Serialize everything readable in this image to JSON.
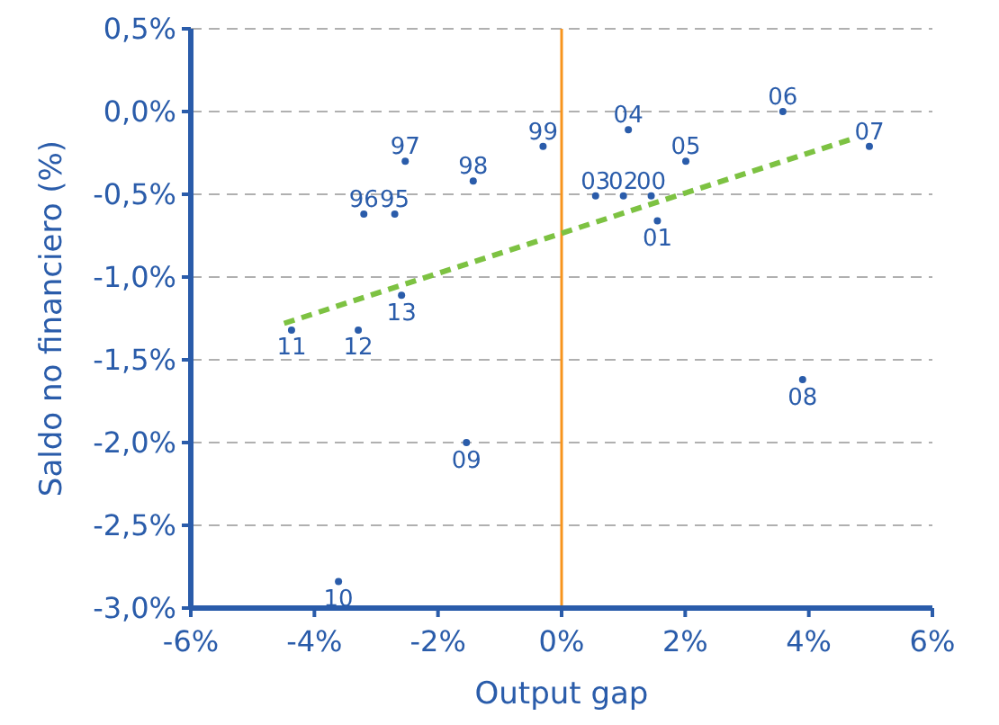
{
  "chart_data": {
    "type": "scatter",
    "xlabel": "Output gap",
    "ylabel": "Saldo no financiero (%)",
    "grid": "y",
    "marker": "circle",
    "xlim": [
      -6,
      6
    ],
    "ylim": [
      -3,
      0.5
    ],
    "xticks": [
      {
        "value": -6,
        "label": "-6%"
      },
      {
        "value": -4,
        "label": "-4%"
      },
      {
        "value": -2,
        "label": "-2%"
      },
      {
        "value": 0,
        "label": "0%"
      },
      {
        "value": 2,
        "label": "2%"
      },
      {
        "value": 4,
        "label": "4%"
      },
      {
        "value": 6,
        "label": "6%"
      }
    ],
    "yticks": [
      {
        "value": -3,
        "label": "-3,0%"
      },
      {
        "value": -2.5,
        "label": "-2,5%"
      },
      {
        "value": -2,
        "label": "-2,0%"
      },
      {
        "value": -1.5,
        "label": "-1,5%"
      },
      {
        "value": -1,
        "label": "-1,0%"
      },
      {
        "value": -0.5,
        "label": "-0,5%"
      },
      {
        "value": 0,
        "label": "0,0%"
      },
      {
        "value": 0.5,
        "label": "0,5%"
      }
    ],
    "ref_lines": [
      {
        "axis": "x",
        "value": 0,
        "color": "#f7941d"
      }
    ],
    "series": [
      {
        "name": "95",
        "color": "#2a5caa",
        "x": [
          -2.7
        ],
        "values": [
          -0.62
        ]
      },
      {
        "name": "96",
        "color": "#2a5caa",
        "x": [
          -3.2
        ],
        "values": [
          -0.62
        ]
      },
      {
        "name": "97",
        "color": "#2a5caa",
        "x": [
          -2.53
        ],
        "values": [
          -0.3
        ]
      },
      {
        "name": "98",
        "color": "#2a5caa",
        "x": [
          -1.43
        ],
        "values": [
          -0.42
        ]
      },
      {
        "name": "99",
        "color": "#2a5caa",
        "x": [
          -0.3
        ],
        "values": [
          -0.21
        ]
      },
      {
        "name": "00",
        "color": "#2a5caa",
        "x": [
          1.45
        ],
        "values": [
          -0.51
        ]
      },
      {
        "name": "01",
        "color": "#2a5caa",
        "x": [
          1.55
        ],
        "values": [
          -0.66
        ]
      },
      {
        "name": "02",
        "color": "#2a5caa",
        "x": [
          1.0
        ],
        "values": [
          -0.51
        ]
      },
      {
        "name": "03",
        "color": "#2a5caa",
        "x": [
          0.55
        ],
        "values": [
          -0.51
        ]
      },
      {
        "name": "04",
        "color": "#2a5caa",
        "x": [
          1.08
        ],
        "values": [
          -0.11
        ]
      },
      {
        "name": "05",
        "color": "#2a5caa",
        "x": [
          2.01
        ],
        "values": [
          -0.3
        ]
      },
      {
        "name": "06",
        "color": "#2a5caa",
        "x": [
          3.58
        ],
        "values": [
          0.0
        ]
      },
      {
        "name": "07",
        "color": "#2a5caa",
        "x": [
          4.98
        ],
        "values": [
          -0.21
        ]
      },
      {
        "name": "08",
        "color": "#2a5caa",
        "x": [
          3.9
        ],
        "values": [
          -1.62
        ]
      },
      {
        "name": "09",
        "color": "#2a5caa",
        "x": [
          -1.54
        ],
        "values": [
          -2.0
        ]
      },
      {
        "name": "10",
        "color": "#2a5caa",
        "x": [
          -3.61
        ],
        "values": [
          -2.84
        ]
      },
      {
        "name": "11",
        "color": "#2a5caa",
        "x": [
          -4.37
        ],
        "values": [
          -1.32
        ]
      },
      {
        "name": "12",
        "color": "#2a5caa",
        "x": [
          -3.29
        ],
        "values": [
          -1.32
        ]
      },
      {
        "name": "13",
        "color": "#2a5caa",
        "x": [
          -2.59
        ],
        "values": [
          -1.11
        ]
      },
      {
        "type": "line",
        "color": "#7dc242",
        "line_style": "dashed",
        "marker": "none",
        "x": [
          -4.49,
          4.66
        ],
        "values": [
          -1.28,
          -0.17
        ]
      }
    ]
  }
}
